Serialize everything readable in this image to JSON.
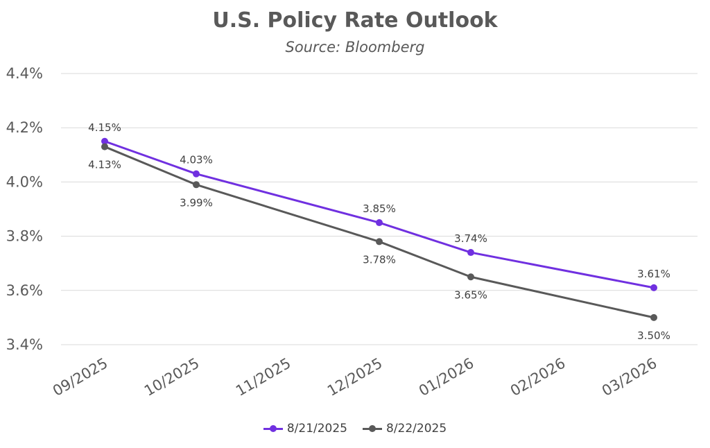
{
  "chart_data": {
    "type": "line",
    "title": "U.S. Policy Rate Outlook",
    "subtitle": "Source: Bloomberg",
    "categories": [
      "09/2025",
      "10/2025",
      "11/2025",
      "12/2025",
      "01/2026",
      "02/2026",
      "03/2026"
    ],
    "ylim": [
      3.4,
      4.4
    ],
    "yticks": [
      "3.4%",
      "3.6%",
      "3.8%",
      "4.0%",
      "4.2%",
      "4.4%"
    ],
    "ytick_values": [
      3.4,
      3.6,
      3.8,
      4.0,
      4.2,
      4.4
    ],
    "grid": true,
    "legend_position": "bottom",
    "series": [
      {
        "name": "8/21/2025",
        "color": "#7030e0",
        "values": [
          4.15,
          4.03,
          null,
          3.85,
          3.74,
          null,
          3.61
        ],
        "labels": [
          "4.15%",
          "4.03%",
          null,
          "3.85%",
          "3.74%",
          null,
          "3.61%"
        ],
        "label_side": "above"
      },
      {
        "name": "8/22/2025",
        "color": "#595959",
        "values": [
          4.13,
          3.99,
          null,
          3.78,
          3.65,
          null,
          3.5
        ],
        "labels": [
          "4.13%",
          "3.99%",
          null,
          "3.78%",
          "3.65%",
          null,
          "3.50%"
        ],
        "label_side": "below"
      }
    ]
  }
}
